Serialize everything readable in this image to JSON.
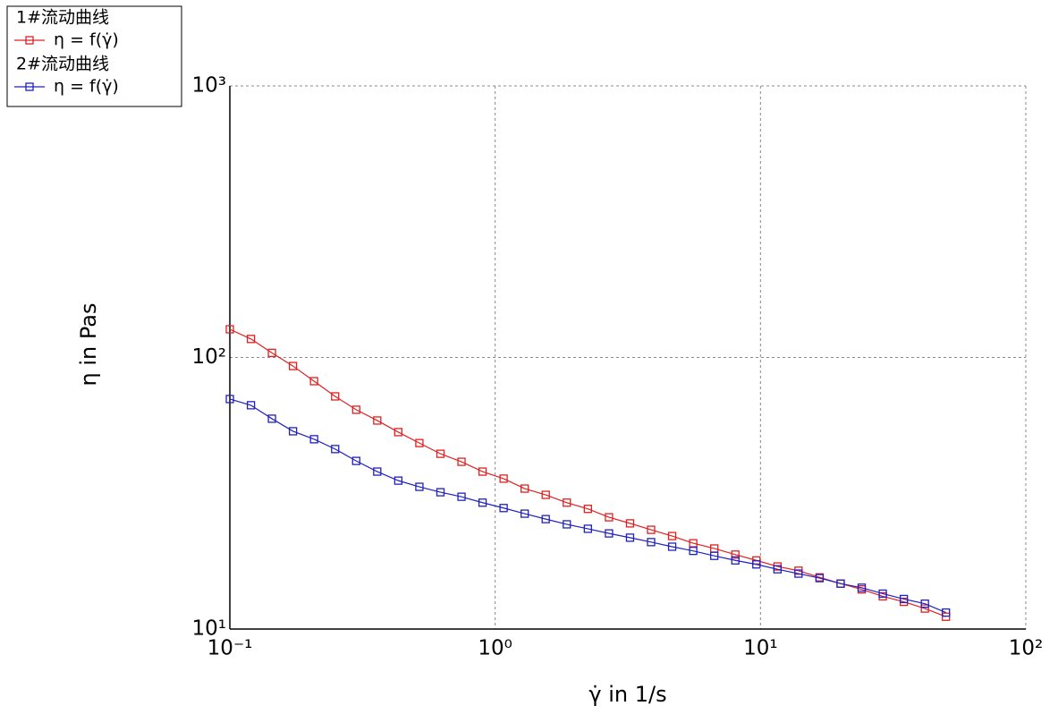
{
  "chart_data": {
    "type": "line",
    "x_label": "γ̇ in 1/s",
    "y_label": "η in Pas",
    "x": [
      0.1,
      0.1201,
      0.1441,
      0.173,
      0.2077,
      0.2494,
      0.2994,
      0.3594,
      0.4315,
      0.5181,
      0.622,
      0.7467,
      0.8965,
      1.076,
      1.292,
      1.551,
      1.862,
      2.236,
      2.685,
      3.223,
      3.87,
      4.646,
      5.578,
      6.697,
      8.04,
      9.652,
      11.59,
      13.91,
      16.7,
      20.05,
      24.07,
      28.9,
      34.7,
      41.66,
      50.0
    ],
    "series": [
      {
        "group": "1#流动曲线",
        "name": "η = f(γ̇)",
        "color": "#e02020",
        "values": [
          127,
          117,
          104,
          93,
          81.8,
          71.9,
          64.2,
          58.6,
          53.1,
          48.4,
          44.2,
          41.3,
          38.0,
          35.8,
          32.9,
          31.2,
          29.2,
          27.7,
          25.8,
          24.5,
          23.2,
          22.0,
          20.7,
          19.8,
          18.8,
          17.9,
          17.0,
          16.4,
          15.5,
          14.7,
          14.0,
          13.2,
          12.6,
          11.9,
          11.1
        ]
      },
      {
        "group": "2#流动曲线",
        "name": "η = f(γ̇)",
        "color": "#2020c0",
        "values": [
          70.3,
          66.7,
          59.5,
          53.5,
          50.0,
          46.0,
          41.6,
          38.0,
          35.2,
          33.4,
          31.9,
          30.7,
          29.2,
          27.9,
          26.6,
          25.4,
          24.3,
          23.4,
          22.5,
          21.7,
          20.9,
          20.1,
          19.4,
          18.6,
          17.9,
          17.3,
          16.6,
          16.0,
          15.4,
          14.7,
          14.2,
          13.5,
          12.9,
          12.4,
          11.5
        ]
      }
    ],
    "xscale": "log",
    "yscale": "log",
    "xlim": [
      0.1,
      100
    ],
    "ylim": [
      10,
      1000
    ],
    "xticks": [
      {
        "value": 0.1,
        "label": "10⁻¹"
      },
      {
        "value": 1,
        "label": "10⁰"
      },
      {
        "value": 10,
        "label": "10¹"
      },
      {
        "value": 100,
        "label": "10²"
      }
    ],
    "yticks": [
      {
        "value": 10,
        "label": "10¹"
      },
      {
        "value": 100,
        "label": "10²"
      },
      {
        "value": 1000,
        "label": "10³"
      }
    ],
    "grid": true,
    "legend": "top-left"
  }
}
